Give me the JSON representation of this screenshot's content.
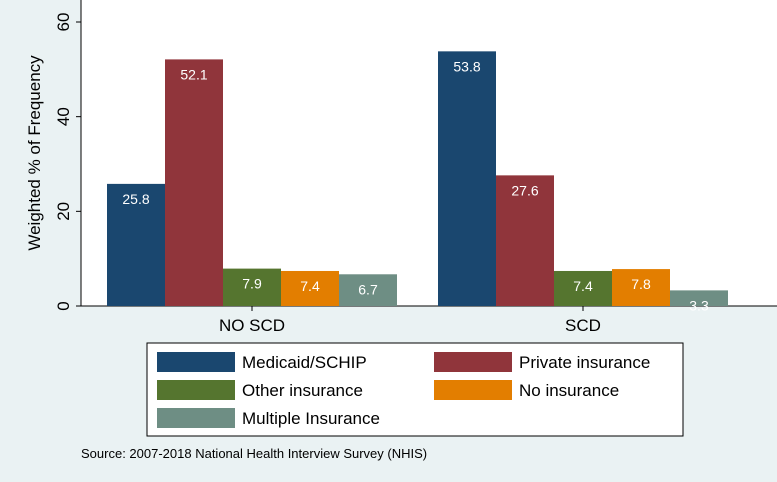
{
  "chart_data": {
    "type": "bar",
    "categories": [
      "NO SCD",
      "SCD"
    ],
    "series": [
      {
        "name": "Medicaid/SCHIP",
        "color": "#1a476f",
        "values": [
          25.8,
          53.8
        ]
      },
      {
        "name": "Private insurance",
        "color": "#90353b",
        "values": [
          52.1,
          27.6
        ]
      },
      {
        "name": "Other insurance",
        "color": "#55752f",
        "values": [
          7.9,
          7.4
        ]
      },
      {
        "name": "No insurance",
        "color": "#e37e00",
        "values": [
          7.4,
          7.8
        ]
      },
      {
        "name": "Multiple Insurance",
        "color": "#6e8e84",
        "values": [
          6.7,
          3.3
        ]
      }
    ],
    "ylabel": "Weighted % of Frequency",
    "xlabel": "",
    "ylim": [
      0,
      60
    ],
    "yticks": [
      0,
      20,
      40,
      60
    ],
    "grid": false,
    "legend": "bottom",
    "source": "Source: 2007-2018 National Health Interview Survey (NHIS)"
  }
}
